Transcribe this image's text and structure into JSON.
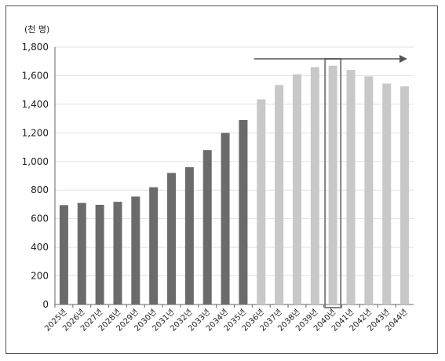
{
  "chart_data": {
    "type": "bar",
    "unit_label": "(천 명)",
    "categories": [
      "2025년",
      "2026년",
      "2027년",
      "2028년",
      "2029년",
      "2030년",
      "2031년",
      "2032년",
      "2033년",
      "2034년",
      "2035년",
      "2036년",
      "2037년",
      "2038년",
      "2039년",
      "2040년",
      "2041년",
      "2042년",
      "2043년",
      "2044년"
    ],
    "values": [
      695,
      710,
      697,
      718,
      755,
      820,
      920,
      960,
      1080,
      1200,
      1290,
      1435,
      1535,
      1610,
      1660,
      1670,
      1640,
      1595,
      1545,
      1525
    ],
    "bar_colors": {
      "historical": "#6b6b6b",
      "projected": "#c8c8c8"
    },
    "projected_from_index": 11,
    "highlight_index": 15,
    "highlight_color": "#808080",
    "arrow_color": "#555555",
    "ylim": [
      0,
      1800
    ],
    "yticks": [
      "0",
      "200",
      "400",
      "600",
      "800",
      "1,000",
      "1,200",
      "1,400",
      "1,600",
      "1,800"
    ],
    "ytick_values": [
      0,
      200,
      400,
      600,
      800,
      1000,
      1200,
      1400,
      1600,
      1800
    ],
    "grid": true,
    "title": "",
    "xlabel": "",
    "ylabel": ""
  }
}
